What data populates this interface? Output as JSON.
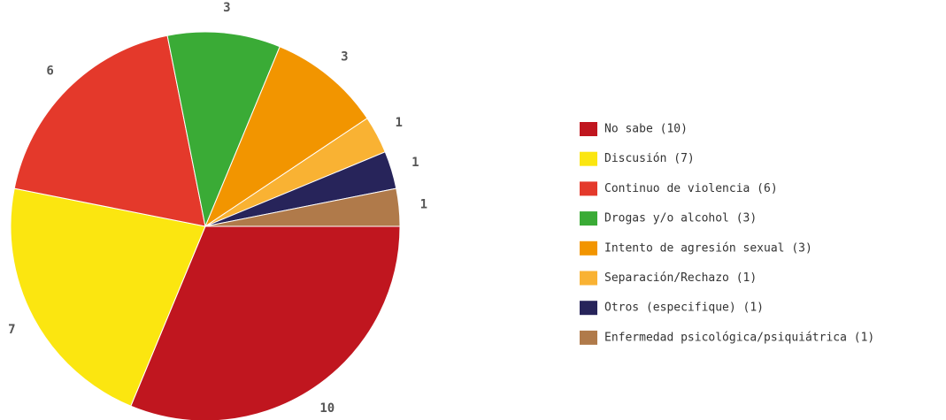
{
  "chart_data": {
    "type": "pie",
    "categories": [
      "No sabe (10)",
      "Discusión (7)",
      "Continuo de violencia (6)",
      "Drogas y/o alcohol (3)",
      "Intento de agresión sexual (3)",
      "Separación/Rechazo (1)",
      "Otros (especifique) (1)",
      "Enfermedad psicológica/psiquiátrica (1)"
    ],
    "values": [
      10,
      7,
      6,
      3,
      3,
      1,
      1,
      1
    ],
    "colors": [
      "#c0161f",
      "#fbe610",
      "#e4392b",
      "#3aab36",
      "#f29500",
      "#f9b233",
      "#27245a",
      "#b07a4a"
    ],
    "legend": "right"
  }
}
